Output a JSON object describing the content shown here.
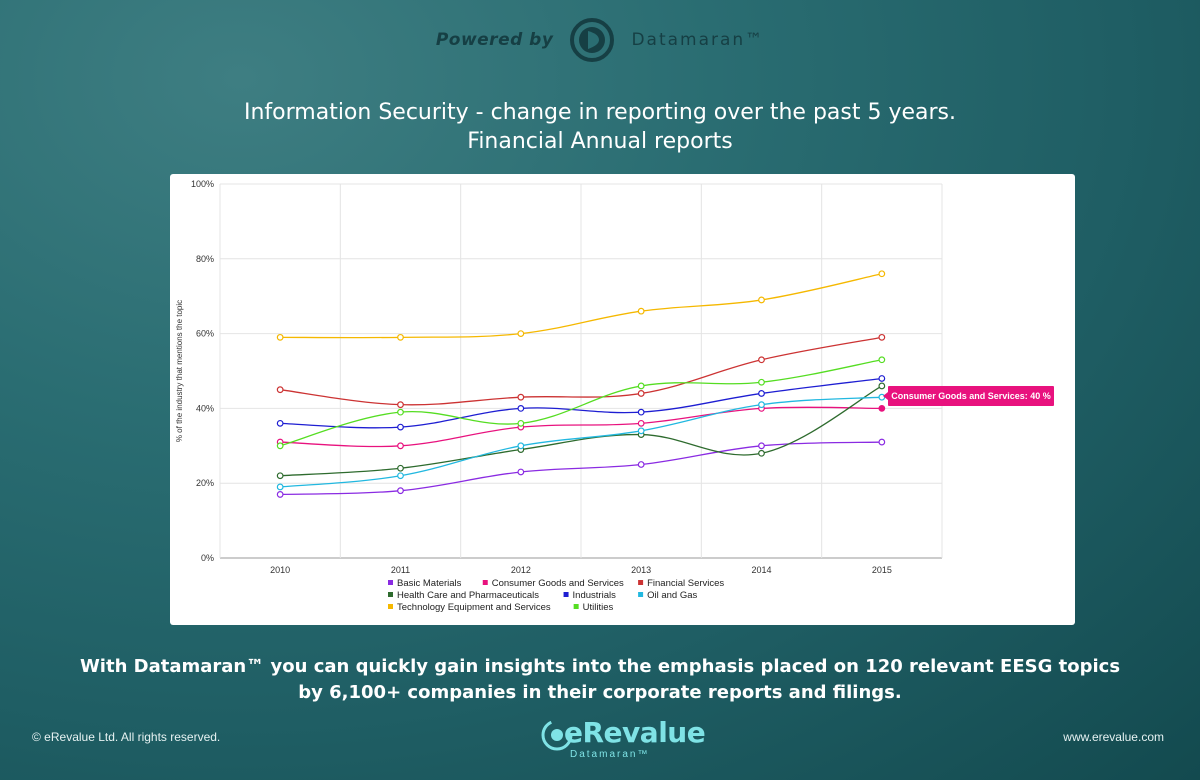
{
  "header": {
    "powered_by": "Powered by",
    "brand": "Datamaran™"
  },
  "title_line1": "Information Security - change in reporting over the past 5 years.",
  "title_line2": "Financial Annual reports",
  "tooltip": "Consumer Goods and Services: 40 %",
  "footer_line1": "With Datamaran™ you can quickly gain insights into the emphasis placed on 120 relevant EESG topics",
  "footer_line2": "by 6,100+ companies in their corporate reports and filings.",
  "copyright": "© eRevalue Ltd. All rights reserved.",
  "website": "www.erevalue.com",
  "bottom_logo": {
    "main": "eRevalue",
    "sub": "Datamaran™"
  },
  "colors": {
    "card": "#ffffff",
    "tooltip": "#e8127e"
  },
  "chart_data": {
    "type": "line",
    "title": "Information Security - change in reporting over the past 5 years. Financial Annual reports",
    "x": [
      "2010",
      "2011",
      "2012",
      "2013",
      "2014",
      "2015"
    ],
    "ylabel": "% of the industry that mentions the topic",
    "xlabel": "",
    "ylim": [
      0,
      100
    ],
    "yticks": [
      "0%",
      "20%",
      "40%",
      "60%",
      "80%",
      "100%"
    ],
    "grid": true,
    "legend": "bottom",
    "series": [
      {
        "name": "Basic Materials",
        "color": "#8a2be2",
        "values": [
          17,
          18,
          23,
          25,
          30,
          31
        ]
      },
      {
        "name": "Consumer Goods and Services",
        "color": "#e8127e",
        "values": [
          31,
          30,
          35,
          36,
          40,
          40
        ]
      },
      {
        "name": "Financial Services",
        "color": "#cc3333",
        "values": [
          45,
          41,
          43,
          44,
          53,
          59
        ]
      },
      {
        "name": "Health Care and Pharmaceuticals",
        "color": "#2e6b2e",
        "values": [
          22,
          24,
          29,
          33,
          28,
          46
        ]
      },
      {
        "name": "Industrials",
        "color": "#1e1ed2",
        "values": [
          36,
          35,
          40,
          39,
          44,
          48
        ]
      },
      {
        "name": "Oil and Gas",
        "color": "#22b8e0",
        "values": [
          19,
          22,
          30,
          34,
          41,
          43
        ]
      },
      {
        "name": "Technology Equipment and Services",
        "color": "#f5b800",
        "values": [
          59,
          59,
          60,
          66,
          69,
          76
        ]
      },
      {
        "name": "Utilities",
        "color": "#55dd22",
        "values": [
          30,
          39,
          36,
          46,
          47,
          53
        ]
      }
    ]
  }
}
